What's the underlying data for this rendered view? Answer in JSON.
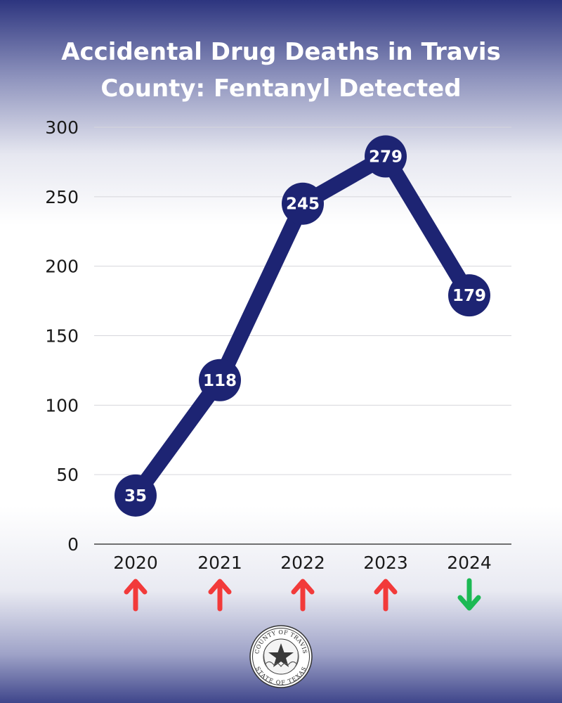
{
  "chart_data": {
    "type": "line",
    "title_lines": [
      "Accidental Drug Deaths in Travis",
      "County: Fentanyl Detected"
    ],
    "title": "Accidental Drug Deaths in Travis County: Fentanyl Detected",
    "categories": [
      "2020",
      "2021",
      "2022",
      "2023",
      "2024"
    ],
    "values": [
      35,
      118,
      245,
      279,
      179
    ],
    "value_labels": [
      "35",
      "118",
      "245",
      "279",
      "179"
    ],
    "y_ticks": [
      0,
      50,
      100,
      150,
      200,
      250,
      300
    ],
    "y_tick_labels": [
      "0",
      "50",
      "100",
      "150",
      "200",
      "250",
      "300"
    ],
    "ylim": [
      0,
      300
    ],
    "xlabel": "",
    "ylabel": "",
    "grid": true,
    "trend_arrows": [
      "up",
      "up",
      "up",
      "up",
      "down"
    ],
    "colors": {
      "line": "#1d2473",
      "grid": "#d6d6dc",
      "axis": "#444444",
      "up_arrow": "#f23a3a",
      "down_arrow": "#1cb954"
    }
  },
  "seal": {
    "top_text": "COUNTY OF TRAVIS",
    "bottom_text": "STATE OF TEXAS"
  }
}
